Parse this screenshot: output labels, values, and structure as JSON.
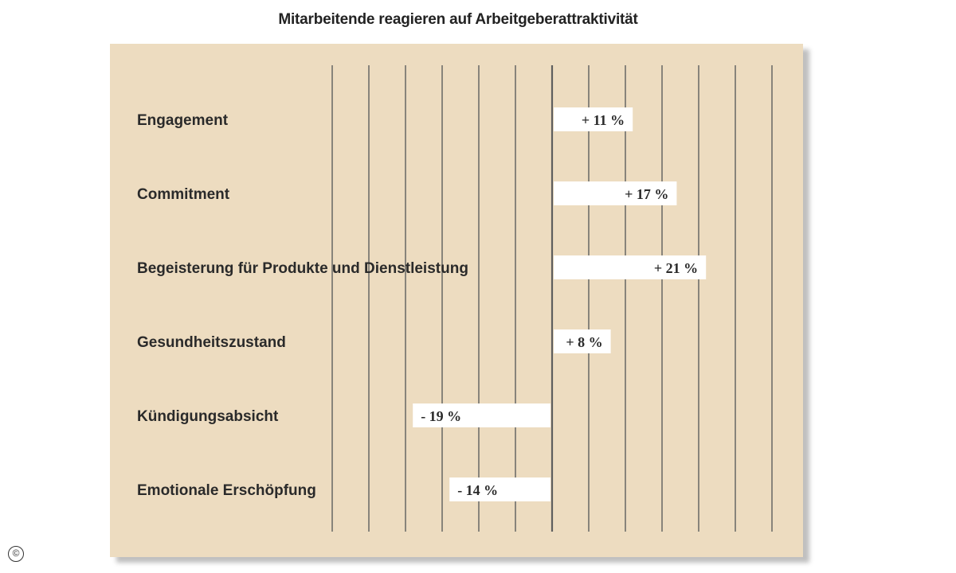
{
  "title": "Mitarbeitende reagieren auf Arbeitgeberattraktivität",
  "copyright_symbol": "©",
  "colors": {
    "panel_background": "#eddcc0",
    "bar_fill": "#ffffff",
    "grid_line": "#5e5e5e",
    "text": "#2a2a2a"
  },
  "chart_data": {
    "type": "bar",
    "orientation": "horizontal",
    "title": "Mitarbeitende reagieren auf Arbeitgeberattraktivität",
    "xlabel": "",
    "ylabel": "",
    "unit": "%",
    "grid": true,
    "xlim": [
      -30,
      30
    ],
    "grid_step": 5,
    "categories": [
      "Engagement",
      "Commitment",
      "Begeisterung für Produkte und Dienstleistung",
      "Gesundheitszustand",
      "Kündigungsabsicht",
      "Emotionale Erschöpfung"
    ],
    "values": [
      11,
      17,
      21,
      8,
      -19,
      -14
    ],
    "value_labels": [
      "+ 11 %",
      "+ 17 %",
      "+ 21 %",
      "+ 8 %",
      "- 19 %",
      "- 14 %"
    ]
  }
}
